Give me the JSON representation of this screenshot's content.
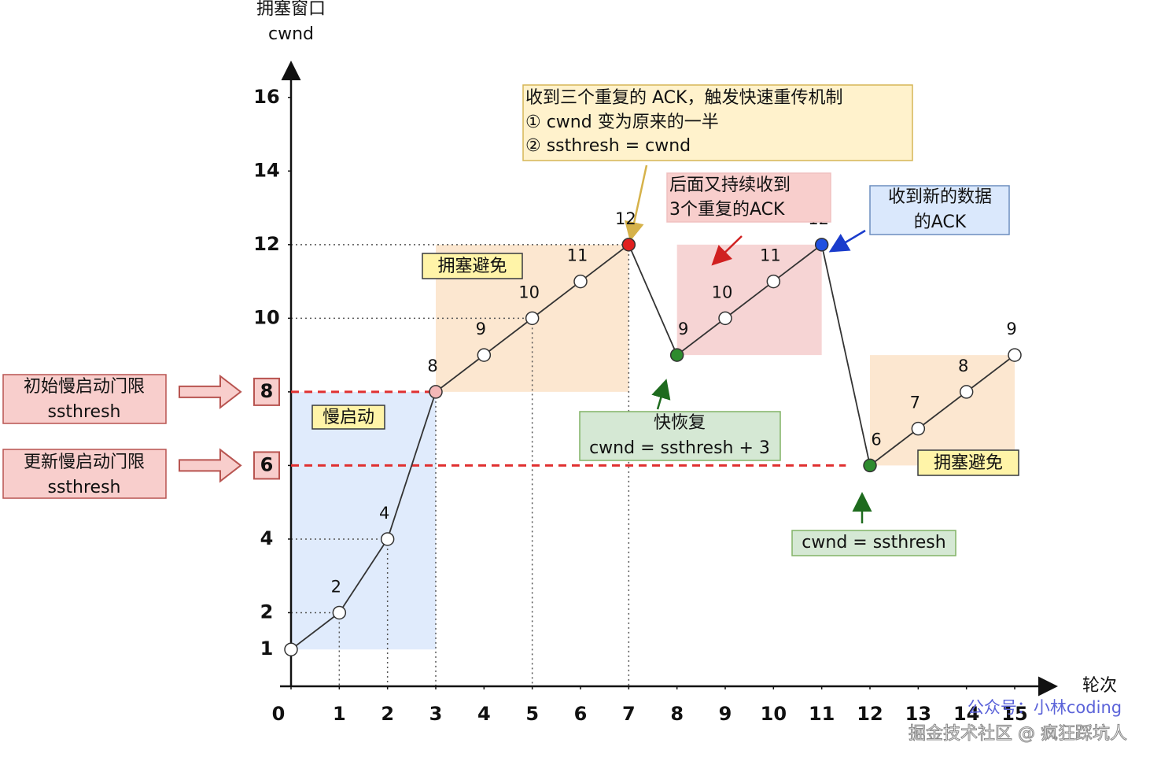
{
  "chart_data": {
    "type": "line",
    "y_label": [
      "拥塞窗口",
      "cwnd"
    ],
    "x_label": "轮次",
    "x": [
      0,
      1,
      2,
      3,
      4,
      5,
      6,
      7,
      8,
      9,
      10,
      11,
      12,
      13,
      14,
      15
    ],
    "values": [
      1,
      2,
      4,
      8,
      9,
      10,
      11,
      12,
      9,
      10,
      11,
      12,
      6,
      7,
      8,
      9
    ],
    "color": "#333333",
    "point_colors": [
      "#ffffff",
      "#ffffff",
      "#ffffff",
      "#f4b8b8",
      "#ffffff",
      "#ffffff",
      "#ffffff",
      "#e02020",
      "#2e8b2e",
      "#ffffff",
      "#ffffff",
      "#2050e0",
      "#2e8b2e",
      "#ffffff",
      "#ffffff",
      "#ffffff"
    ],
    "xlim": [
      0,
      15
    ],
    "xticks": [
      0,
      1,
      2,
      3,
      4,
      5,
      6,
      7,
      8,
      9,
      10,
      11,
      12,
      13,
      14,
      15
    ],
    "ylim": [
      0,
      17
    ],
    "yticks": [
      1,
      2,
      4,
      6,
      8,
      10,
      12,
      14,
      16
    ],
    "thresholds": [
      {
        "value": 8,
        "x": [
          0,
          3
        ],
        "color": "#e03030"
      },
      {
        "value": 6,
        "x": [
          0,
          11.5
        ],
        "color": "#e03030"
      }
    ],
    "phases": [
      {
        "label": "慢启动",
        "x": [
          0,
          3
        ],
        "y": [
          1,
          8
        ],
        "color": "#dae8fc"
      },
      {
        "label": "拥塞避免",
        "x": [
          3,
          7
        ],
        "y": [
          8,
          12
        ],
        "color": "#fbe3c8"
      },
      {
        "x": [
          8,
          11
        ],
        "y": [
          9,
          12
        ],
        "color": "#f4cccc"
      },
      {
        "label": "拥塞避免",
        "x": [
          12,
          15
        ],
        "y": [
          6,
          9
        ],
        "color": "#fbe3c8"
      }
    ],
    "annotations": [
      {
        "lines": [
          "收到三个重复的 ACK，触发快速重传机制",
          "① cwnd 变为原来的一半",
          "② ssthresh = cwnd"
        ]
      },
      {
        "lines": [
          "后面又持续收到",
          "3个重复的ACK"
        ]
      },
      {
        "lines": [
          "收到新的数据",
          "的ACK"
        ]
      },
      {
        "lines": [
          "快恢复",
          "cwnd = ssthresh + 3"
        ]
      },
      {
        "lines": [
          "cwnd = ssthresh"
        ]
      },
      {
        "lines": [
          "初始慢启动门限",
          "ssthresh"
        ]
      },
      {
        "lines": [
          "更新慢启动门限",
          "ssthresh"
        ]
      }
    ],
    "watermark": [
      "公众号：小林coding",
      "掘金技术社区 @ 疯狂踩坑人"
    ]
  }
}
